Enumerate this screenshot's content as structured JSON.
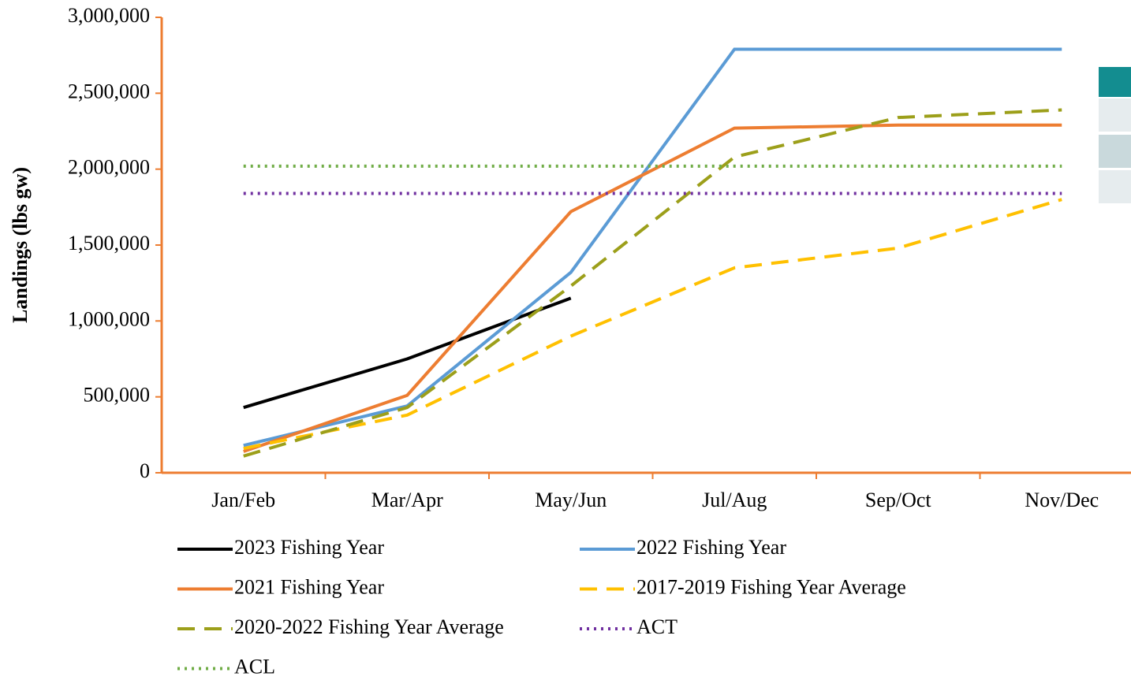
{
  "chart_data": {
    "type": "line",
    "y_label": "Landings (lbs gw)",
    "categories": [
      "Jan/Feb",
      "Mar/Apr",
      "May/Jun",
      "Jul/Aug",
      "Sep/Oct",
      "Nov/Dec"
    ],
    "ylim": [
      0,
      3000000
    ],
    "yticks": [
      0,
      {
        "value": 500000,
        "label": "500,000"
      },
      {
        "value": 1000000,
        "label": "1,000,000"
      },
      {
        "value": 1500000,
        "label": "1,500,000"
      },
      {
        "value": 2000000,
        "label": "2,000,000"
      },
      {
        "value": 2500000,
        "label": "2,500,000"
      },
      {
        "value": 3000000,
        "label": "3,000,000"
      }
    ],
    "axis_color": "#ed7d31",
    "series": [
      {
        "name": "2023 Fishing Year",
        "color": "#000000",
        "style": "solid",
        "values": [
          430000,
          750000,
          1150000,
          null,
          null,
          null
        ]
      },
      {
        "name": "2022 Fishing Year",
        "color": "#5b9bd5",
        "style": "solid",
        "values": [
          180000,
          440000,
          1320000,
          2790000,
          2790000,
          2790000
        ]
      },
      {
        "name": "2021 Fishing Year",
        "color": "#ed7d31",
        "style": "solid",
        "values": [
          140000,
          510000,
          1720000,
          2270000,
          2290000,
          2290000
        ]
      },
      {
        "name": "2017-2019 Fishing Year Average",
        "color": "#ffc000",
        "style": "dashed",
        "values": [
          160000,
          380000,
          900000,
          1350000,
          1480000,
          1800000
        ]
      },
      {
        "name": "2020-2022 Fishing Year Average",
        "color": "#9c9f1a",
        "style": "dashed",
        "values": [
          110000,
          430000,
          1230000,
          2080000,
          2340000,
          2390000
        ]
      },
      {
        "name": "ACT",
        "color": "#7030a0",
        "style": "dotted",
        "values": [
          1840000,
          1840000,
          1840000,
          1840000,
          1840000,
          1840000
        ]
      },
      {
        "name": "ACL",
        "color": "#70ad47",
        "style": "dotted",
        "values": [
          2020000,
          2020000,
          2020000,
          2020000,
          2020000,
          2020000
        ]
      }
    ]
  }
}
